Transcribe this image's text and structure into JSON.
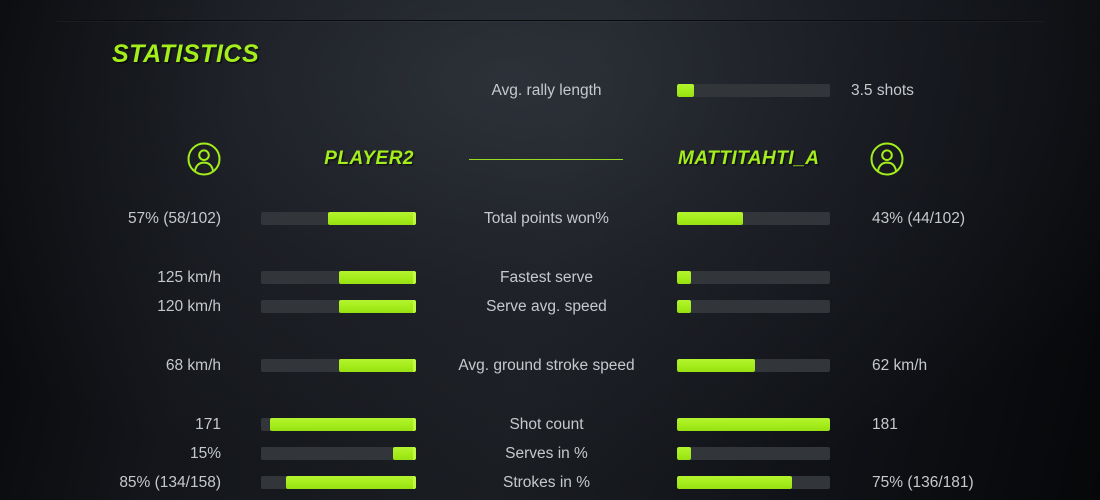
{
  "title": "STATISTICS",
  "colors": {
    "accent": "#a3ee1b",
    "track": "#323539",
    "text": "#c6c9cc"
  },
  "players": {
    "left": {
      "name": "PLAYER2"
    },
    "right": {
      "name": "MATTITAHTI_A"
    }
  },
  "rally": {
    "label": "Avg. rally length",
    "left": {
      "text": "",
      "fill": null
    },
    "right": {
      "text": "3.5 shots",
      "fill": 11
    },
    "gap": false
  },
  "rows": [
    {
      "label": "Total points won%",
      "left": {
        "text": "57% (58/102)",
        "fill": 57
      },
      "right": {
        "text": "43% (44/102)",
        "fill": 43
      },
      "gap": false
    },
    {
      "label": "Fastest serve",
      "left": {
        "text": "125 km/h",
        "fill": 50
      },
      "right": {
        "text": "",
        "fill": 9
      },
      "gap": true
    },
    {
      "label": "Serve avg. speed",
      "left": {
        "text": "120 km/h",
        "fill": 50
      },
      "right": {
        "text": "",
        "fill": 9
      },
      "gap": false
    },
    {
      "label": "Avg. ground stroke speed",
      "left": {
        "text": "68 km/h",
        "fill": 50
      },
      "right": {
        "text": "62 km/h",
        "fill": 51
      },
      "gap": true
    },
    {
      "label": "Shot count",
      "left": {
        "text": "171",
        "fill": 94
      },
      "right": {
        "text": "181",
        "fill": 100
      },
      "gap": true
    },
    {
      "label": "Serves in %",
      "left": {
        "text": "15%",
        "fill": 15
      },
      "right": {
        "text": "",
        "fill": 9
      },
      "gap": false
    },
    {
      "label": "Strokes in %",
      "left": {
        "text": "85% (134/158)",
        "fill": 84
      },
      "right": {
        "text": "75% (136/181)",
        "fill": 75
      },
      "gap": false
    }
  ]
}
